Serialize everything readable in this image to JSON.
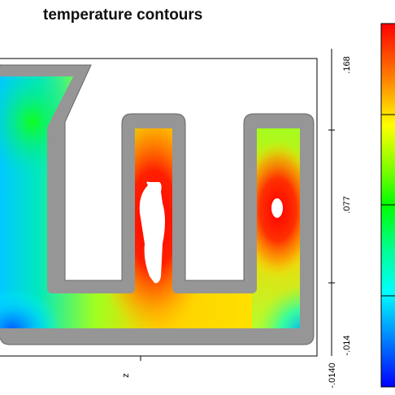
{
  "title": "temperature contours",
  "axes": {
    "vertical_ticks": [
      ".168",
      ".077",
      "-.014",
      "-.0140"
    ],
    "horizontal_label": "z"
  },
  "colorbar": {
    "colors_top_to_bottom": [
      "#ff0000",
      "#ff8000",
      "#ffff00",
      "#80ff00",
      "#00ff00",
      "#00ff80",
      "#00ffff",
      "#0080ff",
      "#0000ff"
    ]
  },
  "colors": {
    "wall": "#969696",
    "wall_outline": "#555555",
    "hot": "#ff0000",
    "cold": "#0000ff"
  }
}
